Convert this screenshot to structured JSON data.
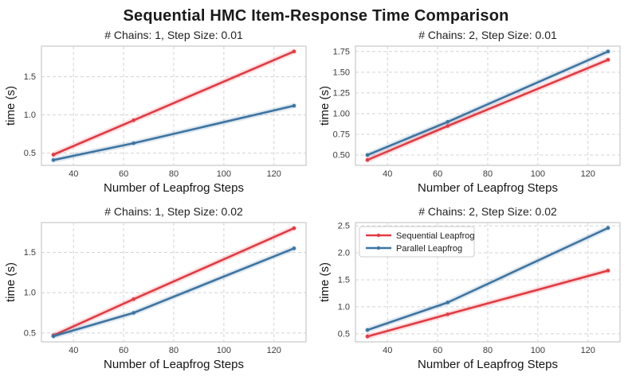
{
  "figure": {
    "title": "Sequential HMC Item-Response Time Comparison"
  },
  "style": {
    "seq_color": "#e23b42",
    "par_color": "#3d74a1",
    "grid_color": "#d4d4d4",
    "spine_color": "#c9c9c9",
    "tick_color": "#3b3b3b",
    "label_color": "#151515",
    "title_color": "#222222",
    "legend_border": "#cccccc",
    "legend_text": "#202020"
  },
  "legend": {
    "entries": [
      {
        "label": "Sequential Leapfrog",
        "color": "#e23b42"
      },
      {
        "label": "Parallel Leapfrog",
        "color": "#3d74a1"
      }
    ]
  },
  "chart_data": [
    {
      "type": "line",
      "title": "# Chains: 1, Step Size: 0.01",
      "xlabel": "Number of Leapfrog Steps",
      "ylabel": "time (s)",
      "x": [
        32,
        64,
        128
      ],
      "series": [
        {
          "name": "Sequential Leapfrog",
          "color": "#e23b42",
          "values": [
            0.48,
            0.93,
            1.83
          ]
        },
        {
          "name": "Parallel Leapfrog",
          "color": "#3d74a1",
          "values": [
            0.41,
            0.63,
            1.12
          ]
        }
      ],
      "xlim": [
        27.2,
        132.8
      ],
      "ylim": [
        0.34,
        1.9
      ],
      "xticks": [
        40,
        60,
        80,
        100,
        120
      ],
      "xtick_labels": [
        "40",
        "60",
        "80",
        "100",
        "120"
      ],
      "yticks": [
        0.5,
        1.0,
        1.5
      ],
      "ytick_labels": [
        "0.5",
        "1.0",
        "1.5"
      ],
      "grid": true,
      "legend": false
    },
    {
      "type": "line",
      "title": "# Chains: 2, Step Size: 0.01",
      "xlabel": "Number of Leapfrog Steps",
      "ylabel": "time (s)",
      "x": [
        32,
        64,
        128
      ],
      "series": [
        {
          "name": "Sequential Leapfrog",
          "color": "#e23b42",
          "values": [
            0.44,
            0.85,
            1.65
          ]
        },
        {
          "name": "Parallel Leapfrog",
          "color": "#3d74a1",
          "values": [
            0.5,
            0.9,
            1.75
          ]
        }
      ],
      "xlim": [
        27.2,
        132.8
      ],
      "ylim": [
        0.375,
        1.815
      ],
      "xticks": [
        40,
        60,
        80,
        100,
        120
      ],
      "xtick_labels": [
        "40",
        "60",
        "80",
        "100",
        "120"
      ],
      "yticks": [
        0.5,
        0.75,
        1.0,
        1.25,
        1.5,
        1.75
      ],
      "ytick_labels": [
        "0.50",
        "0.75",
        "1.00",
        "1.25",
        "1.50",
        "1.75"
      ],
      "grid": true,
      "legend": false
    },
    {
      "type": "line",
      "title": "# Chains: 1, Step Size: 0.02",
      "xlabel": "Number of Leapfrog Steps",
      "ylabel": "time (s)",
      "x": [
        32,
        64,
        128
      ],
      "series": [
        {
          "name": "Sequential Leapfrog",
          "color": "#e23b42",
          "values": [
            0.47,
            0.92,
            1.8
          ]
        },
        {
          "name": "Parallel Leapfrog",
          "color": "#3d74a1",
          "values": [
            0.46,
            0.75,
            1.55
          ]
        }
      ],
      "xlim": [
        27.2,
        132.8
      ],
      "ylim": [
        0.39,
        1.87
      ],
      "xticks": [
        40,
        60,
        80,
        100,
        120
      ],
      "xtick_labels": [
        "40",
        "60",
        "80",
        "100",
        "120"
      ],
      "yticks": [
        0.5,
        1.0,
        1.5
      ],
      "ytick_labels": [
        "0.5",
        "1.0",
        "1.5"
      ],
      "grid": true,
      "legend": false
    },
    {
      "type": "line",
      "title": "# Chains: 2, Step Size: 0.02",
      "xlabel": "Number of Leapfrog Steps",
      "ylabel": "time (s)",
      "x": [
        32,
        64,
        128
      ],
      "series": [
        {
          "name": "Sequential Leapfrog",
          "color": "#e23b42",
          "values": [
            0.45,
            0.86,
            1.67
          ]
        },
        {
          "name": "Parallel Leapfrog",
          "color": "#3d74a1",
          "values": [
            0.57,
            1.08,
            2.46
          ]
        }
      ],
      "xlim": [
        27.2,
        132.8
      ],
      "ylim": [
        0.35,
        2.56
      ],
      "xticks": [
        40,
        60,
        80,
        100,
        120
      ],
      "xtick_labels": [
        "40",
        "60",
        "80",
        "100",
        "120"
      ],
      "yticks": [
        0.5,
        1.0,
        1.5,
        2.0,
        2.5
      ],
      "ytick_labels": [
        "0.5",
        "1.0",
        "1.5",
        "2.0",
        "2.5"
      ],
      "grid": true,
      "legend": true
    }
  ]
}
